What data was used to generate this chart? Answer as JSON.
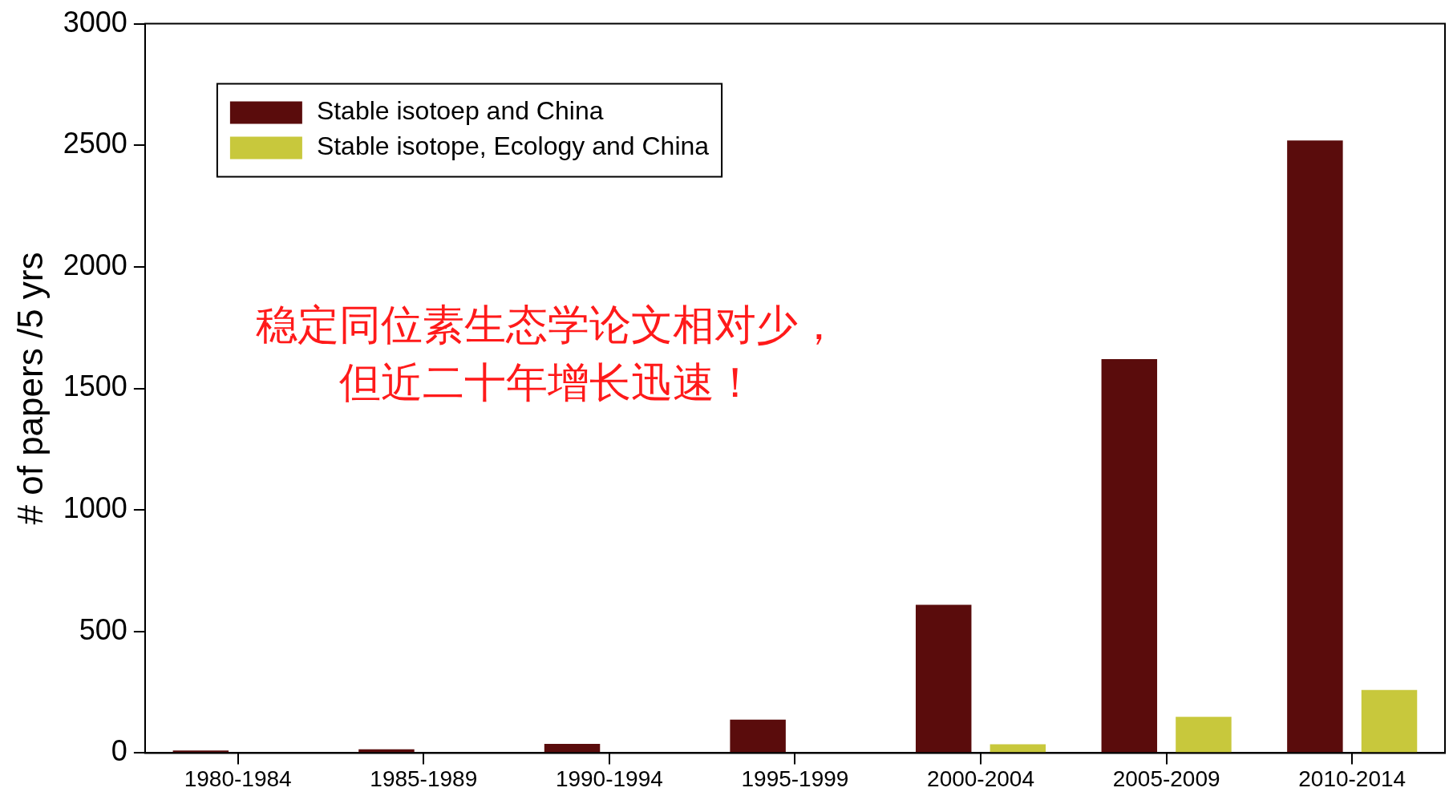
{
  "chart_data": {
    "type": "bar",
    "ylabel": "# of papers /5 yrs",
    "categories": [
      "1980-1984",
      "1985-1989",
      "1990-1994",
      "1995-1999",
      "2000-2004",
      "2005-2009",
      "2010-2014"
    ],
    "series": [
      {
        "name": "Stable isotoep and China",
        "color": "#5a0c0c",
        "values": [
          10,
          15,
          38,
          137,
          610,
          1620,
          2520
        ]
      },
      {
        "name": "Stable isotope, Ecology and China",
        "color": "#c8c83c",
        "values": [
          0,
          0,
          0,
          0,
          36,
          149,
          259
        ]
      }
    ],
    "ylim": [
      0,
      3000
    ],
    "yticks": [
      0,
      500,
      1000,
      1500,
      2000,
      2500,
      3000
    ],
    "legend": "top left",
    "annotations": [
      "稳定同位素生态学论文相对少，",
      "但近二十年增长迅速！"
    ]
  }
}
